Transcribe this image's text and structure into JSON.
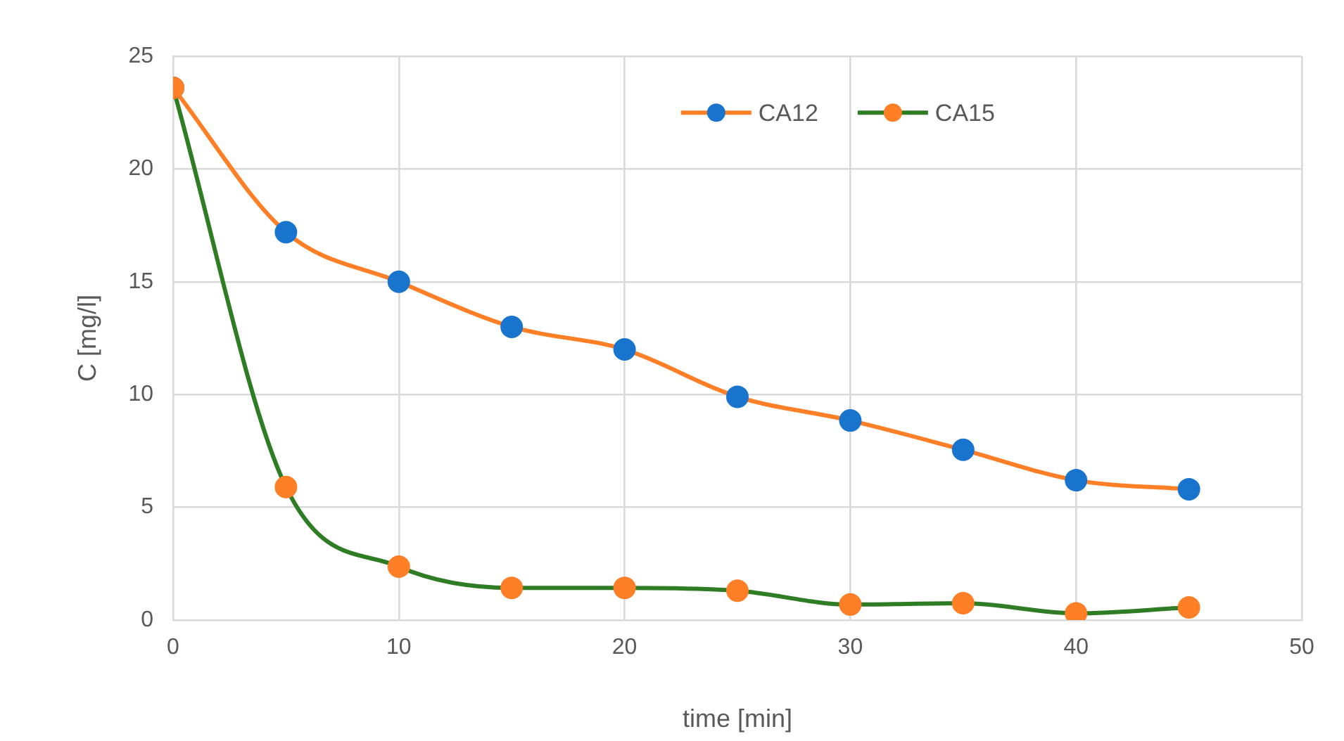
{
  "chart_data": {
    "type": "line",
    "xlabel": "time [min]",
    "ylabel": "C [mg/l]",
    "x": [
      0,
      5,
      10,
      15,
      20,
      25,
      30,
      35,
      40,
      45
    ],
    "series": [
      {
        "name": "CA12",
        "color": "#ff7f27",
        "colors": [
          "#1874cd",
          "#1874cd",
          "#1874cd",
          "#1874cd",
          "#1874cd",
          "#1874cd",
          "#1874cd",
          "#1874cd",
          "#1874cd",
          "#1874cd"
        ],
        "values": [
          23.6,
          17.2,
          15.0,
          13.0,
          12.0,
          9.9,
          8.85,
          7.55,
          6.2,
          5.8
        ]
      },
      {
        "name": "CA15",
        "color": "#2e7d24",
        "colors": [
          "#ff7f27",
          "#ff7f27",
          "#ff7f27",
          "#ff7f27",
          "#ff7f27",
          "#ff7f27",
          "#ff7f27",
          "#ff7f27",
          "#ff7f27",
          "#ff7f27"
        ],
        "values": [
          23.6,
          5.9,
          2.37,
          1.43,
          1.43,
          1.3,
          0.69,
          0.75,
          0.3,
          0.56
        ]
      }
    ],
    "xlim": [
      0,
      50
    ],
    "xticks": [
      0,
      10,
      20,
      30,
      40,
      50
    ],
    "ylim": [
      0,
      25
    ],
    "yticks": [
      0,
      5,
      10,
      15,
      20,
      25
    ],
    "grid": true,
    "legend": "top",
    "marker": "circle",
    "line_style": "solid"
  }
}
